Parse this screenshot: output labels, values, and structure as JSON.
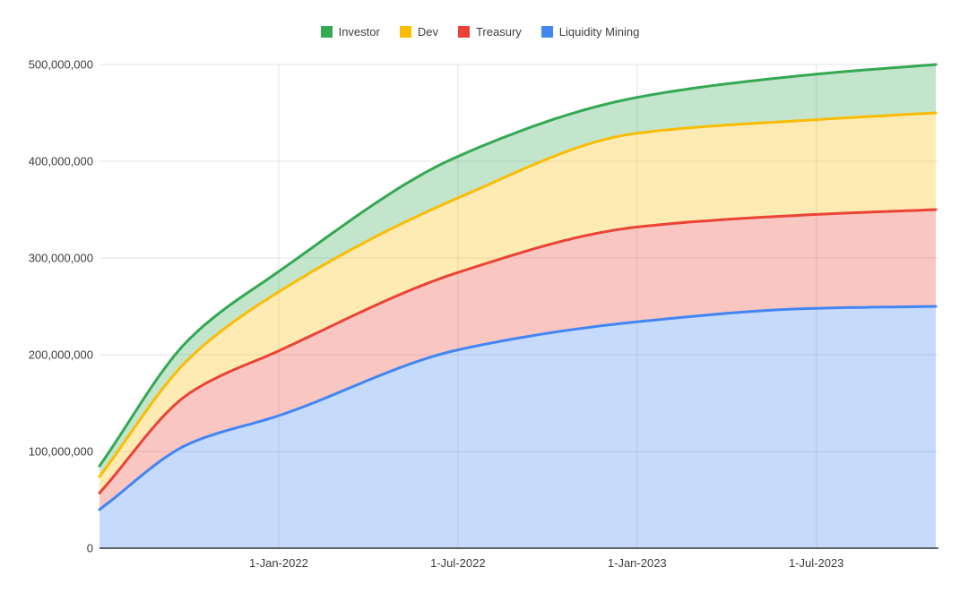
{
  "legend": {
    "items": [
      {
        "label": "Investor",
        "color": "#34a853"
      },
      {
        "label": "Dev",
        "color": "#fbbc04"
      },
      {
        "label": "Treasury",
        "color": "#ea4335"
      },
      {
        "label": "Liquidity Mining",
        "color": "#4285f4"
      }
    ]
  },
  "y_axis": {
    "ticks": [
      {
        "value_millions": 0,
        "label": "0"
      },
      {
        "value_millions": 100,
        "label": "100,000,000"
      },
      {
        "value_millions": 200,
        "label": "200,000,000"
      },
      {
        "value_millions": 300,
        "label": "300,000,000"
      },
      {
        "value_millions": 400,
        "label": "400,000,000"
      },
      {
        "value_millions": 500,
        "label": "500,000,000"
      }
    ],
    "max_millions": 500
  },
  "x_axis": {
    "ticks": [
      {
        "month_offset": 6,
        "label": "1-Jan-2022"
      },
      {
        "month_offset": 12,
        "label": "1-Jul-2022"
      },
      {
        "month_offset": 18,
        "label": "1-Jan-2023"
      },
      {
        "month_offset": 24,
        "label": "1-Jul-2023"
      }
    ],
    "span_months": 28
  },
  "chart_data": {
    "type": "area",
    "stacked": true,
    "unit": "tokens",
    "values_are": "cumulative stacked top boundaries, in millions of tokens",
    "ylim_tokens": [
      0,
      500000000
    ],
    "grid": true,
    "legend_position": "top",
    "x_anchor_months": [
      0,
      3,
      6,
      12,
      18,
      24,
      28
    ],
    "x_anchor_labels": [
      "Jul-2021",
      "Oct-2021",
      "1-Jan-2022",
      "1-Jul-2022",
      "1-Jan-2023",
      "1-Jul-2023",
      "Nov-2023"
    ],
    "series": [
      {
        "name": "Liquidity Mining",
        "color": "#4285f4",
        "final_allocation_millions": 250,
        "cumulative_millions": [
          40,
          108,
          137,
          205,
          234,
          248,
          250
        ]
      },
      {
        "name": "Treasury",
        "color": "#ea4335",
        "final_allocation_millions": 100,
        "cumulative_millions": [
          57,
          160,
          204,
          285,
          332,
          345,
          350
        ]
      },
      {
        "name": "Dev",
        "color": "#fbbc04",
        "final_allocation_millions": 100,
        "cumulative_millions": [
          74,
          196,
          265,
          362,
          429,
          443,
          450
        ]
      },
      {
        "name": "Investor",
        "color": "#34a853",
        "final_allocation_millions": 50,
        "cumulative_millions": [
          85,
          216,
          286,
          405,
          466,
          490,
          500
        ]
      }
    ],
    "total_supply_millions": 500
  },
  "style": {
    "gridline_color": "#e3e3e3",
    "baseline_color": "#333333",
    "fill_opacity": 0.3,
    "line_width": 3
  }
}
